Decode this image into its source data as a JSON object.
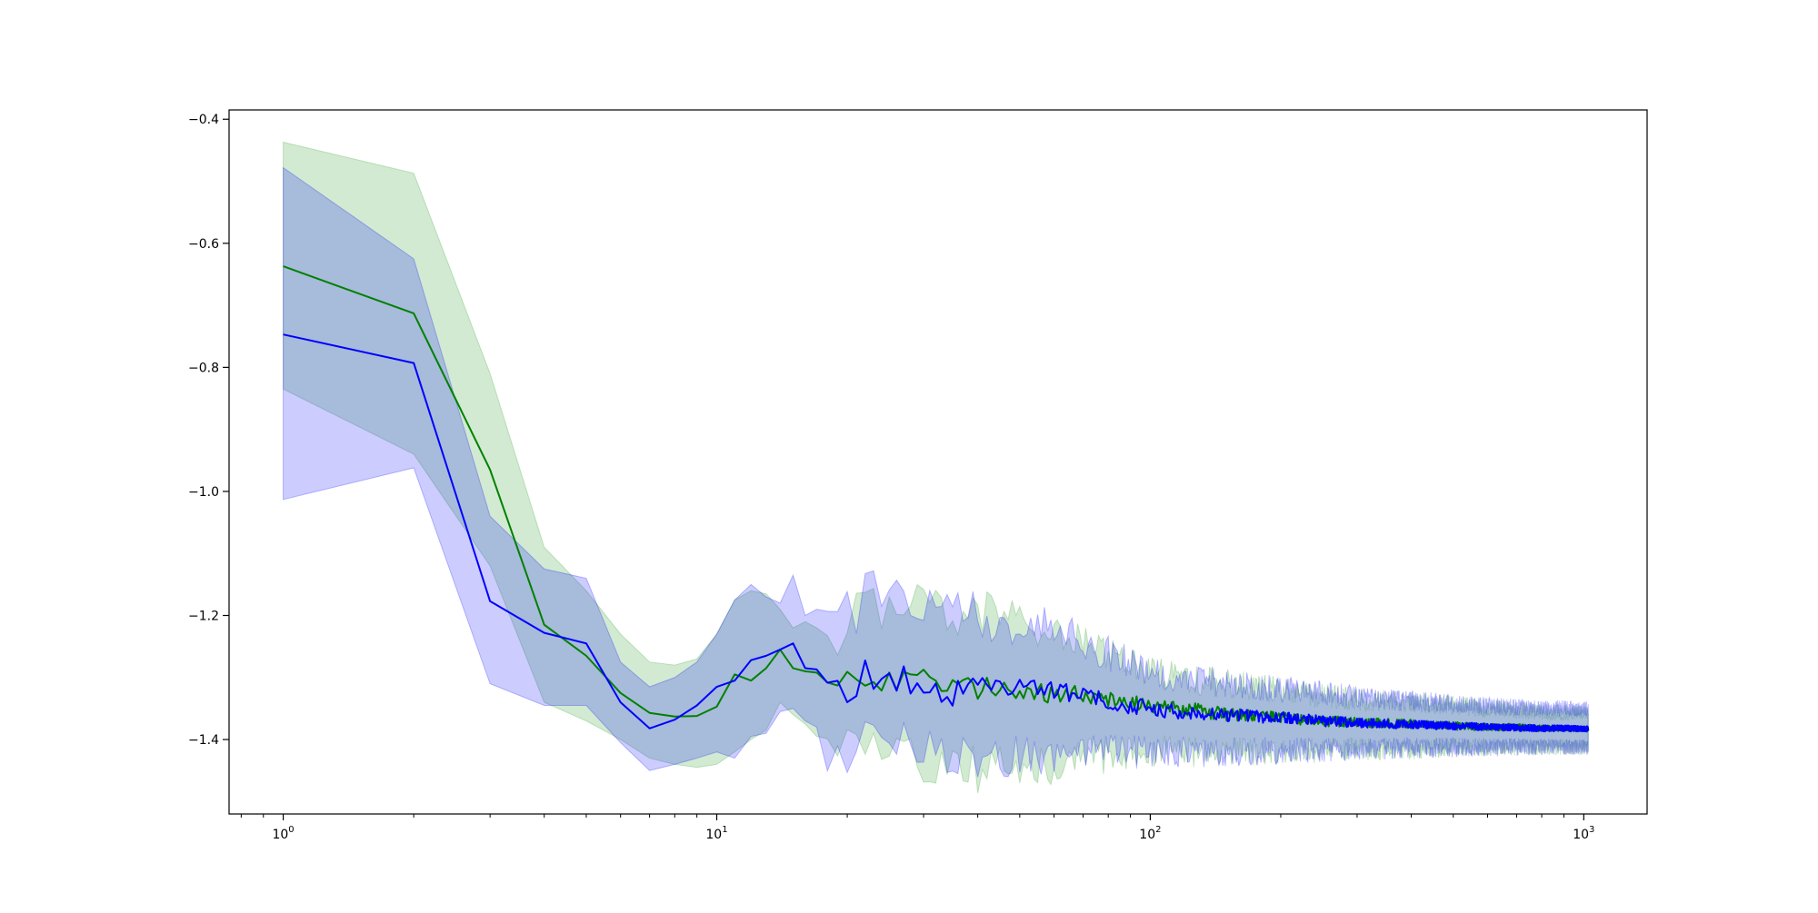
{
  "chart_data": {
    "type": "line",
    "title": "",
    "xlabel": "",
    "ylabel": "",
    "x_scale": "log",
    "xlim": [
      0.75,
      1400
    ],
    "ylim": [
      -1.52,
      -0.385
    ],
    "grid": false,
    "legend": "none",
    "x_ticks": [
      {
        "value": 1,
        "base": "10",
        "exp": "0"
      },
      {
        "value": 10,
        "base": "10",
        "exp": "1"
      },
      {
        "value": 100,
        "base": "10",
        "exp": "2"
      },
      {
        "value": 1000,
        "base": "10",
        "exp": "3"
      }
    ],
    "y_ticks": [
      {
        "value": -0.4,
        "label": "−0.4"
      },
      {
        "value": -0.6,
        "label": "−0.6"
      },
      {
        "value": -0.8,
        "label": "−0.8"
      },
      {
        "value": -1.0,
        "label": "−1.0"
      },
      {
        "value": -1.2,
        "label": "−1.2"
      },
      {
        "value": -1.4,
        "label": "−1.4"
      }
    ],
    "series": [
      {
        "color": "#008000",
        "band_color": "#2ca02c",
        "band_opacity": 0.22,
        "x": [
          1,
          2,
          3,
          4,
          5,
          6,
          7,
          8,
          9,
          10,
          11,
          12,
          13,
          14,
          15,
          16,
          17,
          18,
          20,
          22,
          25,
          30,
          35,
          40,
          50,
          60,
          70,
          80,
          100,
          120,
          150,
          200,
          250,
          300,
          400,
          500,
          600,
          700,
          800,
          900,
          1024
        ],
        "mean": [
          -0.637,
          -0.713,
          -0.965,
          -1.215,
          -1.265,
          -1.325,
          -1.357,
          -1.363,
          -1.362,
          -1.347,
          -1.295,
          -1.305,
          -1.285,
          -1.255,
          -1.285,
          -1.29,
          -1.292,
          -1.32,
          -1.3,
          -1.295,
          -1.31,
          -1.3,
          -1.32,
          -1.315,
          -1.32,
          -1.325,
          -1.33,
          -1.335,
          -1.345,
          -1.35,
          -1.36,
          -1.365,
          -1.37,
          -1.372,
          -1.375,
          -1.378,
          -1.38,
          -1.38,
          -1.382,
          -1.382,
          -1.383
        ],
        "upper": [
          -0.437,
          -0.487,
          -0.81,
          -1.09,
          -1.16,
          -1.23,
          -1.275,
          -1.28,
          -1.27,
          -1.23,
          -1.175,
          -1.16,
          -1.165,
          -1.19,
          -1.22,
          -1.21,
          -1.22,
          -1.24,
          -1.23,
          -1.18,
          -1.19,
          -1.185,
          -1.2,
          -1.195,
          -1.21,
          -1.22,
          -1.24,
          -1.26,
          -1.29,
          -1.3,
          -1.31,
          -1.32,
          -1.33,
          -1.335,
          -1.34,
          -1.345,
          -1.35,
          -1.352,
          -1.355,
          -1.356,
          -1.356
        ],
        "lower": [
          -0.835,
          -0.94,
          -1.12,
          -1.34,
          -1.37,
          -1.4,
          -1.43,
          -1.44,
          -1.445,
          -1.44,
          -1.42,
          -1.4,
          -1.385,
          -1.34,
          -1.36,
          -1.375,
          -1.395,
          -1.425,
          -1.42,
          -1.41,
          -1.43,
          -1.435,
          -1.44,
          -1.45,
          -1.445,
          -1.44,
          -1.43,
          -1.425,
          -1.42,
          -1.42,
          -1.42,
          -1.42,
          -1.418,
          -1.415,
          -1.415,
          -1.413,
          -1.412,
          -1.412,
          -1.412,
          -1.412,
          -1.412
        ]
      },
      {
        "color": "#0000ff",
        "band_color": "#0000ff",
        "band_opacity": 0.2,
        "x": [
          1,
          2,
          3,
          4,
          5,
          6,
          7,
          8,
          9,
          10,
          11,
          12,
          13,
          14,
          15,
          16,
          17,
          18,
          19,
          20,
          22,
          25,
          30,
          35,
          40,
          50,
          60,
          70,
          80,
          100,
          120,
          150,
          200,
          250,
          300,
          400,
          500,
          600,
          700,
          800,
          900,
          1024
        ],
        "mean": [
          -0.747,
          -0.793,
          -1.177,
          -1.228,
          -1.245,
          -1.34,
          -1.382,
          -1.368,
          -1.345,
          -1.315,
          -1.305,
          -1.272,
          -1.265,
          -1.255,
          -1.245,
          -1.285,
          -1.287,
          -1.325,
          -1.3,
          -1.33,
          -1.29,
          -1.3,
          -1.31,
          -1.325,
          -1.32,
          -1.315,
          -1.32,
          -1.33,
          -1.34,
          -1.35,
          -1.355,
          -1.36,
          -1.365,
          -1.37,
          -1.373,
          -1.376,
          -1.378,
          -1.38,
          -1.381,
          -1.382,
          -1.382,
          -1.383
        ],
        "upper": [
          -0.478,
          -0.625,
          -1.04,
          -1.125,
          -1.14,
          -1.275,
          -1.315,
          -1.3,
          -1.275,
          -1.23,
          -1.175,
          -1.15,
          -1.17,
          -1.18,
          -1.135,
          -1.2,
          -1.19,
          -1.22,
          -1.21,
          -1.2,
          -1.17,
          -1.175,
          -1.185,
          -1.195,
          -1.2,
          -1.215,
          -1.22,
          -1.24,
          -1.26,
          -1.29,
          -1.3,
          -1.31,
          -1.318,
          -1.325,
          -1.332,
          -1.338,
          -1.343,
          -1.346,
          -1.348,
          -1.35,
          -1.35,
          -1.35
        ],
        "lower": [
          -1.013,
          -0.962,
          -1.31,
          -1.345,
          -1.345,
          -1.405,
          -1.45,
          -1.44,
          -1.43,
          -1.42,
          -1.43,
          -1.395,
          -1.39,
          -1.355,
          -1.35,
          -1.37,
          -1.38,
          -1.41,
          -1.4,
          -1.42,
          -1.4,
          -1.41,
          -1.42,
          -1.43,
          -1.43,
          -1.425,
          -1.425,
          -1.42,
          -1.42,
          -1.42,
          -1.42,
          -1.42,
          -1.418,
          -1.416,
          -1.415,
          -1.414,
          -1.413,
          -1.412,
          -1.412,
          -1.412,
          -1.412,
          -1.412
        ]
      }
    ]
  }
}
